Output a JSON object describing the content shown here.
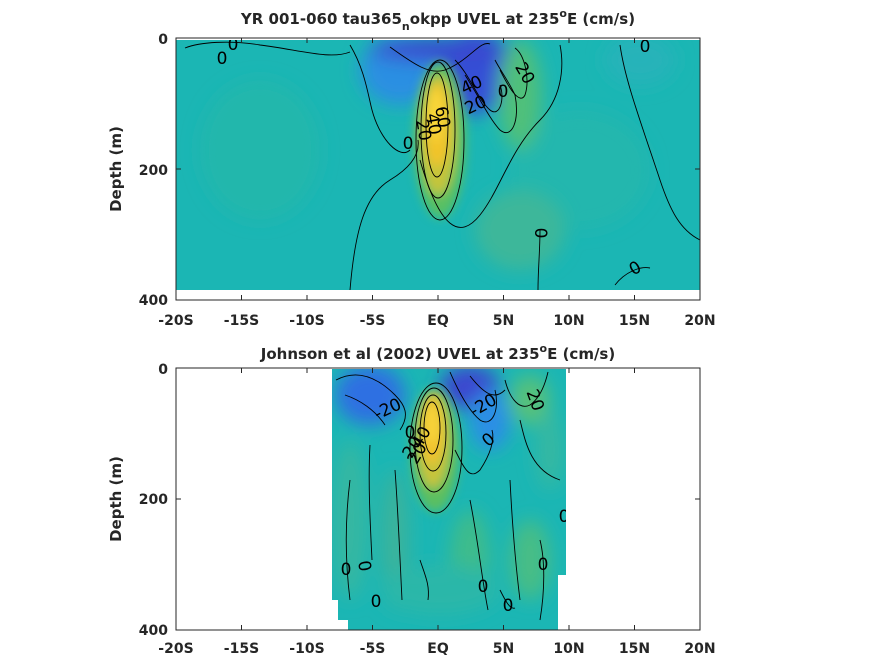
{
  "chart_data": [
    {
      "type": "heatmap",
      "title_pre": "YR 001-060 tau365",
      "title_sub": "n",
      "title_post": "okpp UVEL at 235",
      "title_sup": "o",
      "title_end": "E (cm/s)",
      "xlabel": "",
      "ylabel": "Depth (m)",
      "xlim": [
        -20,
        20
      ],
      "ylim": [
        400,
        0
      ],
      "x_ticks": [
        "-20S",
        "-15S",
        "-10S",
        "-5S",
        "EQ",
        "5N",
        "10N",
        "15N",
        "20N"
      ],
      "y_ticks": [
        "0",
        "200",
        "400"
      ],
      "data_lon_range": [
        -20,
        20
      ],
      "data_depth_max": 380,
      "contour_labels": [
        "0",
        "0",
        "0",
        "40",
        "20",
        "20",
        "0",
        "60",
        "40",
        "20",
        "0",
        "0",
        "0",
        "0"
      ]
    },
    {
      "type": "heatmap",
      "title_pre": "Johnson et al (2002) UVEL at 235",
      "title_sup": "o",
      "title_end": "E (cm/s)",
      "xlabel": "",
      "ylabel": "Depth (m)",
      "xlim": [
        -20,
        20
      ],
      "ylim": [
        400,
        0
      ],
      "x_ticks": [
        "-20S",
        "-15S",
        "-10S",
        "-5S",
        "EQ",
        "5N",
        "10N",
        "15N",
        "20N"
      ],
      "y_ticks": [
        "0",
        "200",
        "400"
      ],
      "data_lon_range": [
        -8,
        10
      ],
      "contour_labels": [
        "-20",
        "-20",
        "20",
        "0",
        "20",
        "40",
        "20",
        "0",
        "0",
        "0",
        "0",
        "0",
        "0",
        "0",
        "0"
      ]
    }
  ],
  "colors": {
    "background_field": "#1bb6b4",
    "strong_westward": "#3d4fd6",
    "westward": "#2f86e6",
    "eastward": "#6cc35a",
    "strong_eastward": "#f0c12c",
    "peak": "#f7d838",
    "axis": "#262626"
  }
}
